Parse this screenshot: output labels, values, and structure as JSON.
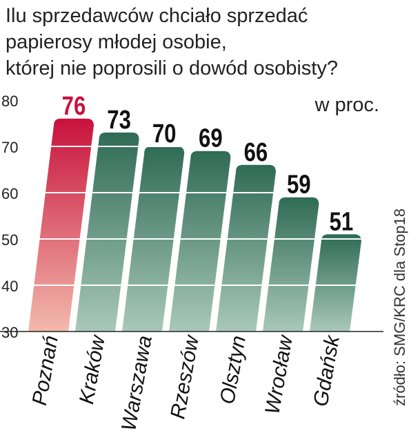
{
  "chart_data": {
    "type": "bar",
    "title_lines": [
      "Ilu sprzedawców chciało sprzedać",
      "papierosy młodej osobie,",
      "której nie poprosili o dowód osobisty?"
    ],
    "unit": "w proc.",
    "source": "źródło: SMG/KRC dla Stop18",
    "categories": [
      "Poznań",
      "Kraków",
      "Warszawa",
      "Rzeszów",
      "Olsztyn",
      "Wrocław",
      "Gdańsk"
    ],
    "values": [
      76,
      73,
      70,
      69,
      66,
      59,
      51
    ],
    "value_labels": [
      "76",
      "73",
      "70",
      "69",
      "66",
      "59",
      "51"
    ],
    "ylim": [
      30,
      80
    ],
    "yticks": [
      30,
      40,
      50,
      60,
      70,
      80
    ],
    "ytick_labels": [
      "30",
      "40",
      "50",
      "60",
      "70",
      "80"
    ],
    "grid": true,
    "highlight_index": 0,
    "colors": {
      "highlight_top": "#c8123c",
      "highlight_bottom": "#f3b9ac",
      "bar_top": "#2f6b55",
      "bar_bottom": "#a9c8b9",
      "highlight_label": "#c8123c",
      "label": "#111111",
      "grid": "#ffffff"
    }
  }
}
